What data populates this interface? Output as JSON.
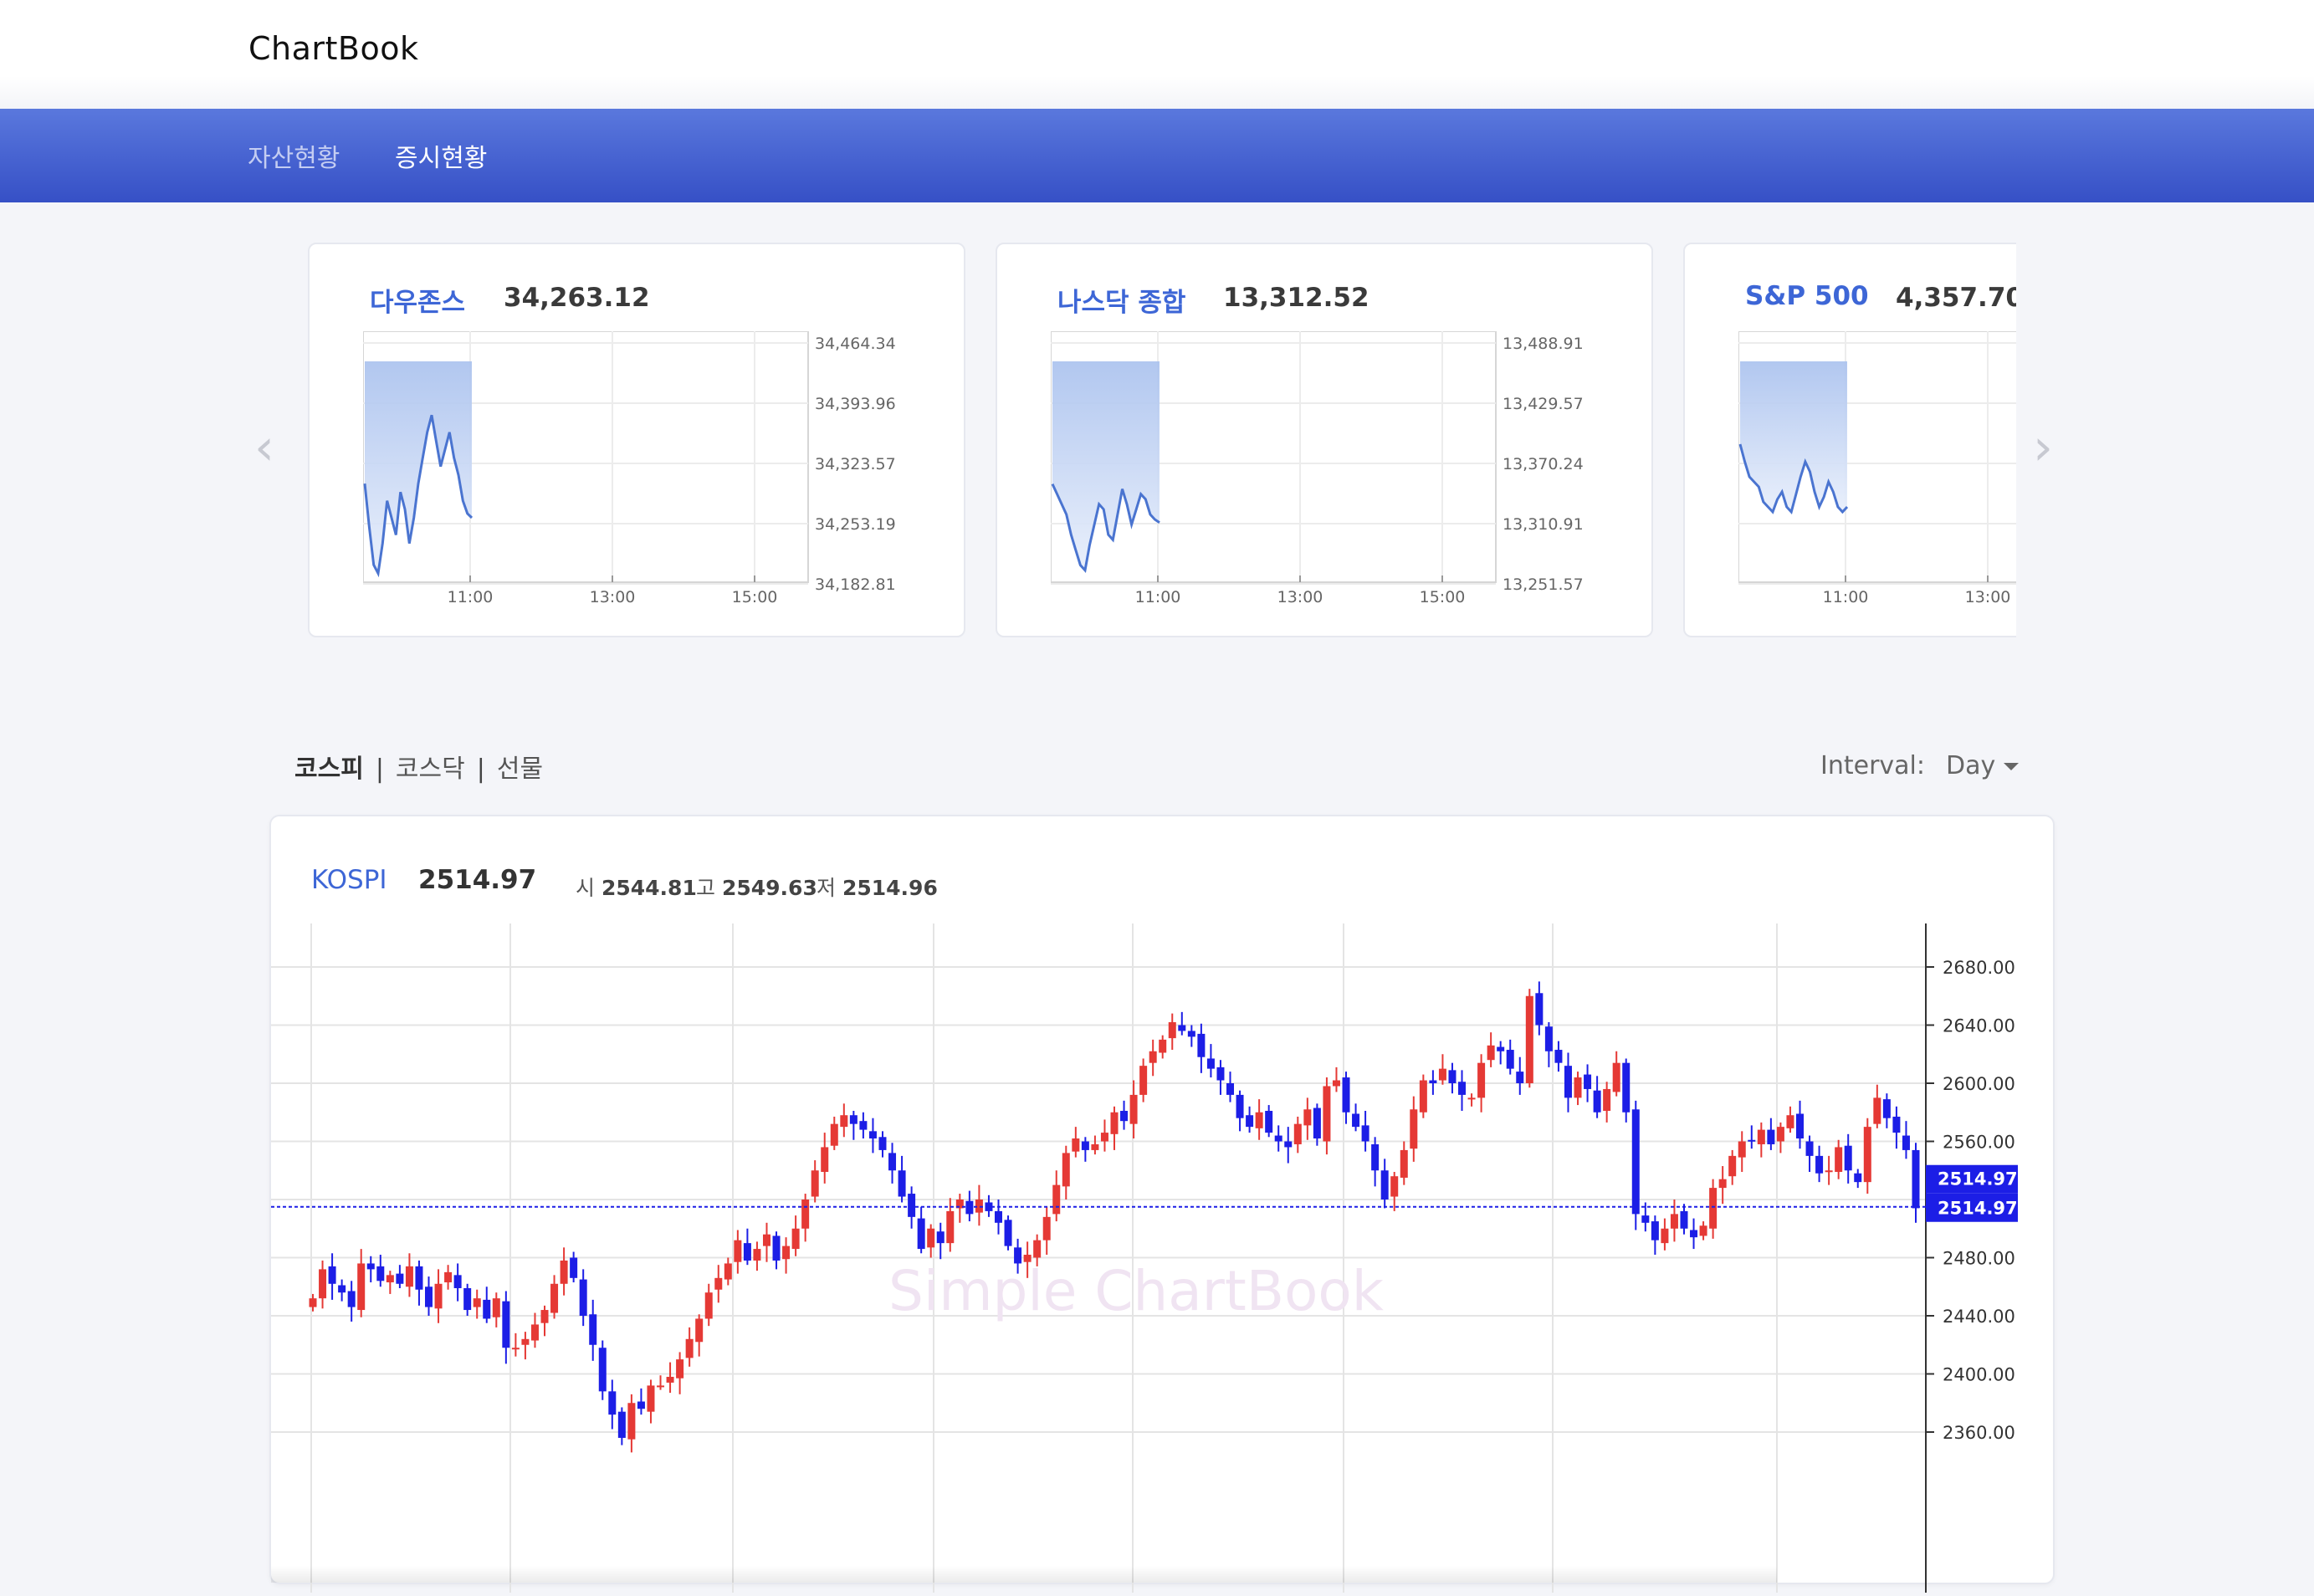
{
  "header": {
    "brand": "ChartBook"
  },
  "nav": {
    "items": [
      "자산현황",
      "증시현황"
    ],
    "active": 1
  },
  "indices": [
    {
      "name": "다우존스",
      "value": "34,263.12",
      "y_ticks": [
        "34,464.34",
        "34,393.96",
        "34,323.57",
        "34,253.19",
        "34,182.81"
      ],
      "x_ticks": [
        "11:00",
        "13:00",
        "15:00"
      ],
      "ylim": [
        34182.81,
        34464.34
      ],
      "series": [
        34300,
        34250,
        34205,
        34195,
        34230,
        34280,
        34260,
        34240,
        34290,
        34270,
        34230,
        34260,
        34300,
        34330,
        34360,
        34380,
        34350,
        34320,
        34340,
        34360,
        34330,
        34310,
        34280,
        34265,
        34260
      ]
    },
    {
      "name": "나스닥 종합",
      "value": "13,312.52",
      "y_ticks": [
        "13,488.91",
        "13,429.57",
        "13,370.24",
        "13,310.91",
        "13,251.57"
      ],
      "x_ticks": [
        "11:00",
        "13:00",
        "15:00"
      ],
      "ylim": [
        13251.57,
        13488.91
      ],
      "series": [
        13350,
        13340,
        13330,
        13320,
        13300,
        13285,
        13270,
        13265,
        13290,
        13310,
        13330,
        13325,
        13300,
        13295,
        13320,
        13345,
        13330,
        13310,
        13325,
        13340,
        13335,
        13320,
        13315,
        13312
      ]
    },
    {
      "name": "S&P 500",
      "value": "4,357.70",
      "x_ticks": [
        "11:00",
        "13:00"
      ],
      "series": [
        0.55,
        0.48,
        0.42,
        0.4,
        0.38,
        0.32,
        0.3,
        0.28,
        0.33,
        0.36,
        0.3,
        0.28,
        0.35,
        0.42,
        0.48,
        0.44,
        0.36,
        0.3,
        0.34,
        0.4,
        0.36,
        0.3,
        0.28,
        0.3
      ]
    }
  ],
  "markets": {
    "tabs": [
      "코스피",
      "코스닥",
      "선물"
    ],
    "active": 0
  },
  "interval": {
    "label": "Interval:",
    "value": "Day"
  },
  "main": {
    "name": "KOSPI",
    "value": "2514.97",
    "open_label": "시",
    "open": "2544.81",
    "high_label": "고",
    "high": "2549.63",
    "low_label": "저",
    "low": "2514.96",
    "watermark": "Simple ChartBook",
    "last_price": "2514.97",
    "colors": {
      "up": "#e53935",
      "down": "#1c1ee6",
      "accent": "#3d66d6"
    }
  },
  "chart_data": {
    "type": "candlestick",
    "y_ticks": [
      2680,
      2640,
      2600,
      2560,
      2520,
      2480,
      2440,
      2400,
      2360
    ],
    "y_tick_labels": [
      "2680.00",
      "2640.00",
      "2600.00",
      "2560.00",
      "2480.00",
      "2440.00",
      "2400.00",
      "2360.00"
    ],
    "ylim": [
      2325,
      2712
    ],
    "last_price": 2514.97,
    "closes": [
      2452,
      2472,
      2462,
      2456,
      2446,
      2476,
      2472,
      2464,
      2468,
      2462,
      2474,
      2458,
      2446,
      2462,
      2470,
      2459,
      2444,
      2452,
      2438,
      2452,
      2418,
      2418,
      2424,
      2434,
      2444,
      2462,
      2478,
      2466,
      2440,
      2420,
      2388,
      2372,
      2356,
      2380,
      2376,
      2392,
      2392,
      2398,
      2410,
      2424,
      2438,
      2456,
      2466,
      2476,
      2492,
      2478,
      2486,
      2496,
      2478,
      2488,
      2500,
      2520,
      2540,
      2556,
      2572,
      2578,
      2572,
      2568,
      2562,
      2554,
      2540,
      2522,
      2508,
      2486,
      2500,
      2490,
      2512,
      2520,
      2510,
      2520,
      2512,
      2504,
      2488,
      2476,
      2482,
      2492,
      2508,
      2530,
      2552,
      2562,
      2554,
      2558,
      2566,
      2580,
      2574,
      2592,
      2612,
      2622,
      2630,
      2642,
      2636,
      2632,
      2618,
      2610,
      2602,
      2592,
      2576,
      2570,
      2580,
      2566,
      2560,
      2556,
      2572,
      2582,
      2562,
      2598,
      2602,
      2580,
      2570,
      2560,
      2540,
      2520,
      2536,
      2554,
      2582,
      2602,
      2600,
      2610,
      2600,
      2592,
      2590,
      2614,
      2626,
      2622,
      2610,
      2600,
      2660,
      2640,
      2622,
      2614,
      2590,
      2604,
      2596,
      2580,
      2596,
      2614,
      2580,
      2510,
      2504,
      2492,
      2500,
      2510,
      2500,
      2494,
      2502,
      2528,
      2534,
      2550,
      2560,
      2560,
      2568,
      2558,
      2570,
      2578,
      2562,
      2550,
      2538,
      2540,
      2556,
      2540,
      2532,
      2570,
      2590,
      2576,
      2566,
      2554,
      2514
    ]
  }
}
